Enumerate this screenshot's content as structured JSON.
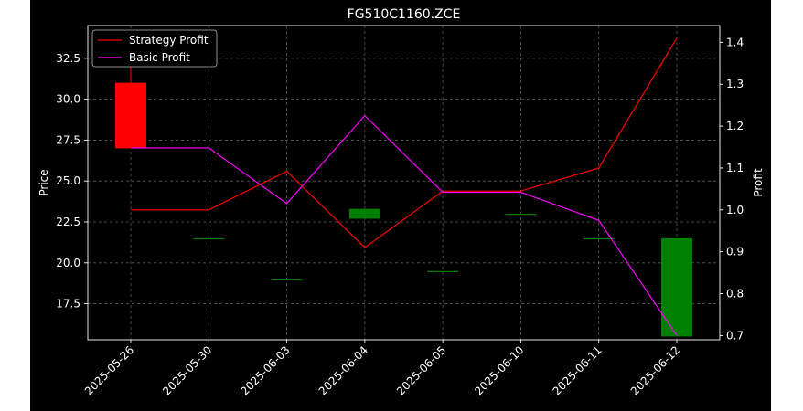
{
  "chart_data": {
    "type": "candlestick+line",
    "title": "FG510C1160.ZCE",
    "xlabel": "",
    "ylabel_left": "Price",
    "ylabel_right": "Profit",
    "categories": [
      "2025-05-26",
      "2025-05-30",
      "2025-06-03",
      "2025-06-04",
      "2025-06-05",
      "2025-06-10",
      "2025-06-11",
      "2025-06-12"
    ],
    "ylim_left": [
      15.3,
      34.5
    ],
    "ylim_right": [
      0.69,
      1.44
    ],
    "yticks_left": [
      "17.5",
      "20.0",
      "22.5",
      "25.0",
      "27.5",
      "30.0",
      "32.5"
    ],
    "yticks_right": [
      "0.7",
      "0.8",
      "0.9",
      "1.0",
      "1.1",
      "1.2",
      "1.3",
      "1.4"
    ],
    "grid": true,
    "legend_position": "upper-left",
    "candles": [
      {
        "open": 31.0,
        "close": 27.0,
        "high": 33.0,
        "low": 27.0
      },
      {
        "open": 21.5,
        "close": 21.5,
        "high": 21.5,
        "low": 21.5
      },
      {
        "open": 19.0,
        "close": 19.0,
        "high": 19.0,
        "low": 19.0
      },
      {
        "open": 22.7,
        "close": 23.3,
        "high": 23.3,
        "low": 22.7
      },
      {
        "open": 19.5,
        "close": 19.5,
        "high": 19.5,
        "low": 19.5
      },
      {
        "open": 23.0,
        "close": 23.0,
        "high": 23.0,
        "low": 23.0
      },
      {
        "open": 21.5,
        "close": 21.5,
        "high": 21.5,
        "low": 21.5
      },
      {
        "open": 15.5,
        "close": 21.5,
        "high": 21.5,
        "low": 15.5
      }
    ],
    "series": [
      {
        "name": "Strategy Profit",
        "color": "#ff0000",
        "values": [
          1.0,
          1.0,
          1.092,
          0.91,
          1.045,
          1.045,
          1.1,
          1.41
        ]
      },
      {
        "name": "Basic Profit",
        "color": "#ff00ff",
        "values": [
          1.148,
          1.148,
          1.015,
          1.225,
          1.042,
          1.042,
          0.975,
          0.7
        ]
      }
    ],
    "colors": {
      "background": "#000000",
      "figure_background": "#000000",
      "foreground": "#ffffff",
      "grid": "#808080",
      "candle_up": "#008000",
      "candle_down": "#ff0000"
    }
  }
}
